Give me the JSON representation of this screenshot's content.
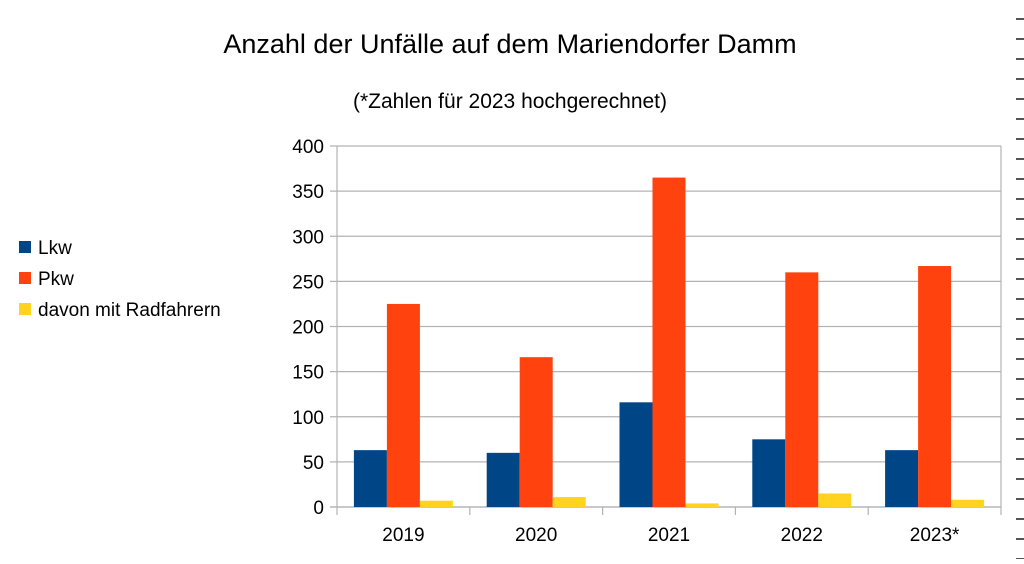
{
  "chart_data": {
    "type": "bar",
    "title": "Anzahl der Unfälle auf dem Mariendorfer Damm",
    "subtitle": "(*Zahlen für 2023 hochgerechnet)",
    "categories": [
      "2019",
      "2020",
      "2021",
      "2022",
      "2023*"
    ],
    "series": [
      {
        "name": "Lkw",
        "values": [
          63,
          60,
          116,
          75,
          63
        ],
        "color": "#004586"
      },
      {
        "name": "Pkw",
        "values": [
          225,
          166,
          365,
          260,
          267
        ],
        "color": "#ff420e"
      },
      {
        "name": "davon mit Radfahrern",
        "values": [
          7,
          11,
          4,
          15,
          8
        ],
        "color": "#ffd320"
      }
    ],
    "ylim": [
      0,
      400
    ],
    "yticks": [
      0,
      50,
      100,
      150,
      200,
      250,
      300,
      350,
      400
    ],
    "xlabel": "",
    "ylabel": "",
    "grid": true,
    "legend_position": "left"
  }
}
